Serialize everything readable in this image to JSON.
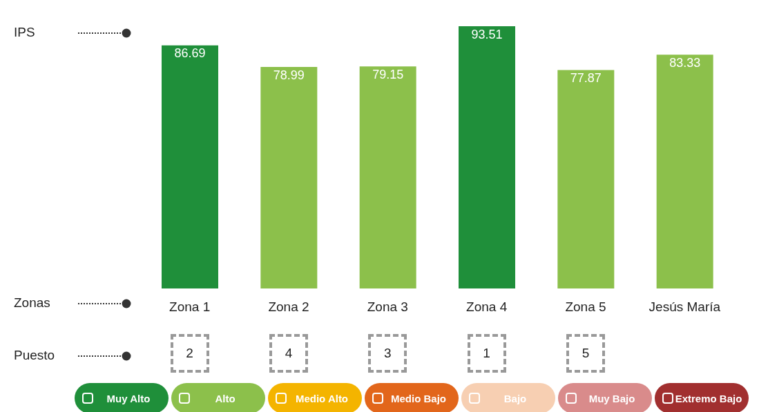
{
  "chart_data": {
    "type": "bar",
    "stacked": true,
    "data_labels": true,
    "legend": "bottom",
    "categories": [
      "Zona 1",
      "Zona 2",
      "Zona 3",
      "Zona 4",
      "Zona 5",
      "Jesús María"
    ],
    "series": [
      {
        "name": "Muy Alto",
        "color": "#1f8f3a",
        "values": [
          86.69,
          null,
          null,
          93.51,
          null,
          null
        ]
      },
      {
        "name": "Alto",
        "color": "#8cc04b",
        "values": [
          null,
          78.99,
          79.15,
          null,
          77.87,
          83.33
        ]
      },
      {
        "name": "Medio Alto",
        "color": "#f4b400",
        "values": [
          null,
          null,
          null,
          null,
          null,
          null
        ]
      },
      {
        "name": "Medio Bajo",
        "color": "#e2661b",
        "values": [
          null,
          null,
          null,
          null,
          null,
          null
        ]
      },
      {
        "name": "Bajo",
        "color": "#f7cfb2",
        "values": [
          null,
          null,
          null,
          null,
          null,
          null
        ]
      },
      {
        "name": "Muy Bajo",
        "color": "#d98b8b",
        "values": [
          null,
          null,
          null,
          null,
          null,
          null
        ]
      },
      {
        "name": "Extremo Bajo",
        "color": "#a12f2f",
        "values": [
          null,
          null,
          null,
          null,
          null,
          null
        ]
      }
    ],
    "annotations": [
      "IPS",
      "Zonas",
      "Puesto",
      "2",
      "4",
      "3",
      "1",
      "5"
    ]
  }
}
